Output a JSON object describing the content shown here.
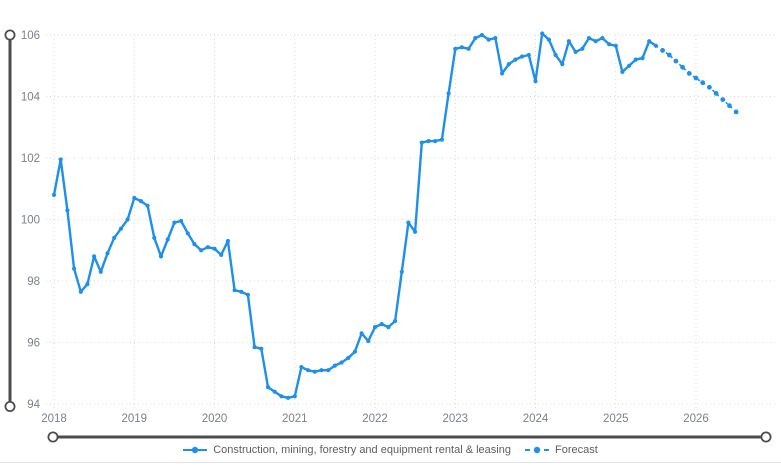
{
  "chart_data": {
    "type": "line",
    "title": "",
    "frequency": "monthly",
    "start_month": "2018-01",
    "x_ticks": [
      "2018",
      "2019",
      "2020",
      "2021",
      "2022",
      "2023",
      "2024",
      "2025",
      "2026"
    ],
    "y_ticks": [
      "106",
      "104",
      "102",
      "100",
      "98",
      "96",
      "94"
    ],
    "y_range": [
      94,
      106
    ],
    "grid": "dotted",
    "legend_position": "bottom",
    "series": [
      {
        "name": "Construction, mining, forestry and equipment rental & leasing",
        "style": "solid",
        "start": "2018-01",
        "values": [
          100.8,
          101.95,
          100.3,
          98.4,
          97.65,
          97.9,
          98.8,
          98.3,
          98.9,
          99.4,
          99.7,
          100.0,
          100.7,
          100.6,
          100.45,
          99.4,
          98.8,
          99.35,
          99.9,
          99.95,
          99.55,
          99.2,
          99.0,
          99.1,
          99.05,
          98.85,
          99.3,
          97.7,
          97.65,
          97.55,
          95.85,
          95.8,
          94.55,
          94.4,
          94.25,
          94.2,
          94.25,
          95.2,
          95.1,
          95.05,
          95.1,
          95.1,
          95.25,
          95.35,
          95.5,
          95.7,
          96.3,
          96.05,
          96.5,
          96.6,
          96.5,
          96.7,
          98.3,
          99.9,
          99.6,
          102.5,
          102.55,
          102.55,
          102.6,
          104.1,
          105.55,
          105.6,
          105.55,
          105.9,
          106.0,
          105.85,
          105.9,
          104.75,
          105.05,
          105.2,
          105.3,
          105.35,
          104.5,
          106.05,
          105.85,
          105.35,
          105.05,
          105.8,
          105.45,
          105.55,
          105.9,
          105.8,
          105.9,
          105.7,
          105.65,
          104.8,
          105.0,
          105.2,
          105.25,
          105.8,
          105.65
        ]
      },
      {
        "name": "Forecast",
        "style": "dashed",
        "start": "2025-08",
        "values": [
          105.5,
          105.35,
          105.15,
          104.95,
          104.75,
          104.6,
          104.45,
          104.3,
          104.1,
          103.9,
          103.7,
          103.5
        ]
      }
    ]
  },
  "colors": {
    "line": "#1E8FEA",
    "grid": "#D9D9D9",
    "axis_text": "#7A828C",
    "scrollbar": "#4D4D4D",
    "legend_text": "#605E5C",
    "background": "#FFFFFF"
  }
}
